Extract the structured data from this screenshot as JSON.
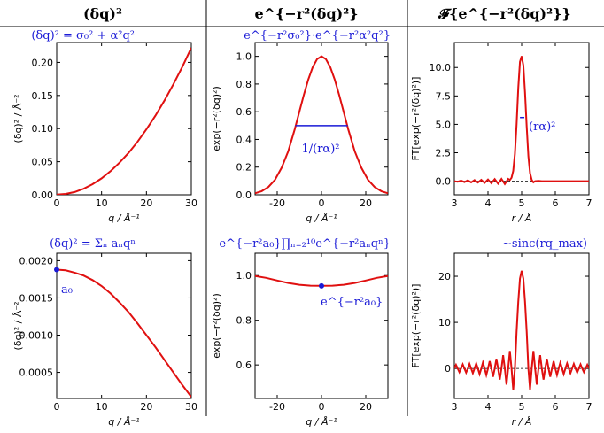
{
  "columns": [
    {
      "header": "(δq)²"
    },
    {
      "header": "e^{−r²(δq)²}"
    },
    {
      "header": "𝓕{e^{−r²(δq)²}}"
    }
  ],
  "colors": {
    "curve": "#e01010",
    "annotation": "#1a1ad6",
    "dashed": "#000000"
  },
  "chart_data": [
    {
      "id": "p11",
      "type": "line",
      "annotation": "(δq)² = σ₀² + α²q²",
      "xlabel": "q / Å⁻¹",
      "ylabel": "(δq)² / Å⁻²",
      "xlim": [
        0,
        30
      ],
      "ylim": [
        0,
        0.23
      ],
      "xticks": [
        0,
        10,
        20,
        30
      ],
      "yticks": [
        0.0,
        0.05,
        0.1,
        0.15,
        0.2
      ],
      "ytick_labels": [
        "0.00",
        "0.05",
        "0.10",
        "0.15",
        "0.20"
      ],
      "series": [
        {
          "x": [
            0,
            2,
            4,
            6,
            8,
            10,
            12,
            14,
            16,
            18,
            20,
            22,
            24,
            26,
            28,
            30
          ],
          "y": [
            0.0003,
            0.0013,
            0.0042,
            0.0091,
            0.016,
            0.0249,
            0.0357,
            0.0485,
            0.0633,
            0.08,
            0.0988,
            0.1195,
            0.1421,
            0.1668,
            0.1934,
            0.222
          ]
        }
      ]
    },
    {
      "id": "p12",
      "type": "line",
      "annotation": "e^{−r²σ₀²}·e^{−r²α²q²}",
      "width_label": "1/(rα)²",
      "xlabel": "q / Å⁻¹",
      "ylabel": "exp(−r²(δq)²)",
      "xlim": [
        -30,
        30
      ],
      "ylim": [
        0,
        1.1
      ],
      "xticks": [
        -20,
        0,
        20
      ],
      "yticks": [
        0.0,
        0.2,
        0.4,
        0.6,
        0.8,
        1.0
      ],
      "ytick_labels": [
        "0.0",
        "0.2",
        "0.4",
        "0.6",
        "0.8",
        "1.0"
      ],
      "width_line": {
        "x1": -11.8,
        "x2": 11.8,
        "y": 0.5
      },
      "series": [
        {
          "x": [
            -30,
            -27,
            -24,
            -21,
            -18,
            -15,
            -12,
            -10,
            -8,
            -6,
            -4,
            -2,
            0,
            2,
            4,
            6,
            8,
            10,
            12,
            15,
            18,
            21,
            24,
            27,
            30
          ],
          "y": [
            0.011,
            0.026,
            0.056,
            0.109,
            0.196,
            0.315,
            0.478,
            0.6,
            0.72,
            0.831,
            0.921,
            0.98,
            1.0,
            0.98,
            0.921,
            0.831,
            0.72,
            0.6,
            0.478,
            0.315,
            0.196,
            0.109,
            0.056,
            0.026,
            0.011
          ]
        }
      ]
    },
    {
      "id": "p13",
      "type": "line",
      "width_label": "(rα)²",
      "xlabel": "r / Å",
      "ylabel": "FT[exp(−r²(δq)²)]",
      "xlim": [
        3,
        7
      ],
      "ylim": [
        -1.2,
        12.2
      ],
      "xticks": [
        3,
        4,
        5,
        6,
        7
      ],
      "yticks": [
        0.0,
        2.5,
        5.0,
        7.5,
        10.0
      ],
      "ytick_labels": [
        "0.0",
        "2.5",
        "5.0",
        "7.5",
        "10.0"
      ],
      "dashed_zero": true,
      "width_line": {
        "x1": 4.95,
        "x2": 5.08,
        "y": 5.6
      },
      "series": [
        {
          "x": [
            3.0,
            3.1,
            3.2,
            3.3,
            3.4,
            3.5,
            3.6,
            3.7,
            3.8,
            3.9,
            4.0,
            4.1,
            4.2,
            4.3,
            4.4,
            4.5,
            4.6,
            4.65,
            4.7,
            4.75,
            4.8,
            4.85,
            4.9,
            4.95,
            5.0,
            5.05,
            5.1,
            5.15,
            5.2,
            5.25,
            5.3,
            5.35,
            5.4,
            5.5,
            5.6,
            5.8,
            6.0,
            6.5,
            7.0
          ],
          "y": [
            0,
            -0.05,
            0.05,
            -0.08,
            0.08,
            -0.1,
            0.1,
            -0.12,
            0.12,
            -0.15,
            0.15,
            -0.18,
            0.18,
            -0.22,
            0.2,
            -0.25,
            0.2,
            0.1,
            0.3,
            0.9,
            2.4,
            5.0,
            8.2,
            10.5,
            11.0,
            10.2,
            7.8,
            4.8,
            2.2,
            0.7,
            0.1,
            -0.1,
            0.0,
            0.02,
            0,
            0,
            0,
            0,
            0
          ]
        }
      ]
    },
    {
      "id": "p21",
      "type": "line",
      "annotation": "(δq)² = Σₙ aₙqⁿ",
      "point_label": "a₀",
      "xlabel": "q / Å⁻¹",
      "ylabel": "(δq)² / Å⁻²",
      "xlim": [
        0,
        30
      ],
      "ylim": [
        0.00015,
        0.0021
      ],
      "xticks": [
        0,
        10,
        20,
        30
      ],
      "yticks": [
        0.0005,
        0.001,
        0.0015,
        0.002
      ],
      "ytick_labels": [
        "0.0005",
        "0.0010",
        "0.0015",
        "0.0020"
      ],
      "point": {
        "x": 0,
        "y": 0.00188
      },
      "series": [
        {
          "x": [
            0,
            2,
            4,
            6,
            8,
            10,
            12,
            14,
            16,
            18,
            20,
            22,
            24,
            26,
            28,
            30
          ],
          "y": [
            0.00188,
            0.00187,
            0.00184,
            0.0018,
            0.00174,
            0.00166,
            0.00156,
            0.00144,
            0.00131,
            0.00116,
            0.001,
            0.00084,
            0.00067,
            0.0005,
            0.00033,
            0.00017
          ]
        }
      ]
    },
    {
      "id": "p22",
      "type": "line",
      "annotation": "e^{−r²a₀}∏ₙ₌₂¹⁰e^{−r²aₙqⁿ}",
      "point_label": "e^{−r²a₀}",
      "xlabel": "q / Å⁻¹",
      "ylabel": "exp(−r²(δq)²)",
      "xlim": [
        -30,
        30
      ],
      "ylim": [
        0.45,
        1.1
      ],
      "xticks": [
        -20,
        0,
        20
      ],
      "yticks": [
        0.6,
        0.8,
        1.0
      ],
      "ytick_labels": [
        "0.6",
        "0.8",
        "1.0"
      ],
      "point": {
        "x": 0,
        "y": 0.954
      },
      "series": [
        {
          "x": [
            -30,
            -25,
            -20,
            -15,
            -10,
            -5,
            0,
            5,
            10,
            15,
            20,
            25,
            30
          ],
          "y": [
            0.998,
            0.99,
            0.978,
            0.967,
            0.959,
            0.955,
            0.954,
            0.955,
            0.959,
            0.967,
            0.978,
            0.99,
            0.998
          ]
        }
      ]
    },
    {
      "id": "p23",
      "type": "line",
      "annotation": "~sinc(rq_max)",
      "xlabel": "r / Å",
      "ylabel": "FT[exp(−r²(δq)²)]",
      "xlim": [
        3,
        7
      ],
      "ylim": [
        -6.5,
        25
      ],
      "xticks": [
        3,
        4,
        5,
        6,
        7
      ],
      "yticks": [
        0,
        10,
        20
      ],
      "ytick_labels": [
        "0",
        "10",
        "20"
      ],
      "dashed_zero": true,
      "series": [
        {
          "x": [
            3.0,
            3.05,
            3.1,
            3.15,
            3.2,
            3.25,
            3.3,
            3.35,
            3.4,
            3.45,
            3.5,
            3.55,
            3.6,
            3.65,
            3.7,
            3.75,
            3.8,
            3.85,
            3.9,
            3.95,
            4.0,
            4.05,
            4.1,
            4.15,
            4.2,
            4.25,
            4.3,
            4.35,
            4.4,
            4.45,
            4.5,
            4.55,
            4.6,
            4.65,
            4.7,
            4.75,
            4.8,
            4.85,
            4.9,
            4.95,
            5.0,
            5.05,
            5.1,
            5.15,
            5.2,
            5.25,
            5.3,
            5.35,
            5.4,
            5.45,
            5.5,
            5.55,
            5.6,
            5.65,
            5.7,
            5.75,
            5.8,
            5.85,
            5.9,
            5.95,
            6.0,
            6.05,
            6.1,
            6.15,
            6.2,
            6.25,
            6.3,
            6.35,
            6.4,
            6.45,
            6.5,
            6.55,
            6.6,
            6.65,
            6.7,
            6.75,
            6.8,
            6.85,
            6.9,
            6.95,
            7.0
          ],
          "y": [
            0,
            0.8,
            0,
            -0.8,
            0,
            0.9,
            0,
            -0.9,
            0,
            1.0,
            0,
            -1.0,
            0,
            1.1,
            0,
            -1.2,
            0,
            1.3,
            0,
            -1.4,
            0,
            1.6,
            0,
            -1.8,
            0,
            2.1,
            0,
            -2.4,
            0,
            2.9,
            0,
            -3.5,
            0,
            3.8,
            0,
            -4.6,
            0,
            8.0,
            14.5,
            19.5,
            21.2,
            19.5,
            14.5,
            8.0,
            0,
            -4.6,
            0,
            3.8,
            0,
            -3.5,
            0,
            2.9,
            0,
            -2.4,
            0,
            2.1,
            0,
            -1.8,
            0,
            1.6,
            0,
            -1.4,
            0,
            1.3,
            0,
            -1.2,
            0,
            1.1,
            0,
            -1.0,
            0,
            1.0,
            0,
            -0.9,
            0,
            0.9,
            0,
            -0.8,
            0,
            0.8,
            0
          ]
        }
      ]
    }
  ]
}
